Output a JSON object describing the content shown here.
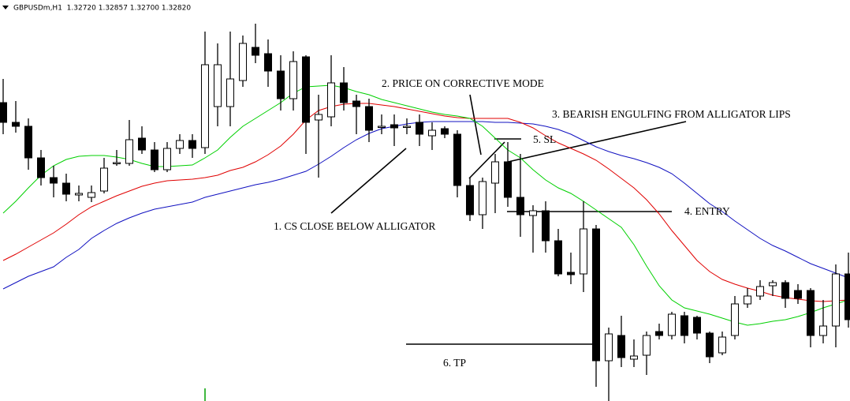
{
  "chart_data": {
    "type": "candlestick",
    "title": "GBPUSDm,H1  1.32720 1.32857 1.32700 1.32820",
    "annotations": [
      "1. CS CLOSE BELOW ALLIGATOR",
      "2. PRICE ON CORRECTIVE MODE",
      "3. BEARISH ENGULFING FROM ALLIGATOR LIPS",
      "4. ENTRY",
      "5. SL",
      "6. TP"
    ],
    "ylim": [
      1.32784,
      1.338
    ],
    "up_color": "#ffffff",
    "down_color": "#000000",
    "open": [
      1.3354,
      1.3349,
      1.3348,
      1.334,
      1.3335,
      1.33336,
      1.33306,
      1.333,
      1.33316,
      1.33386,
      1.33386,
      1.3345,
      1.3342,
      1.3337,
      1.33424,
      1.33444,
      1.33426,
      1.3353,
      1.3353,
      1.33596,
      1.3368,
      1.33664,
      1.3362,
      1.3355,
      1.33656,
      1.33496,
      1.33504,
      1.3359,
      1.33544,
      1.3353,
      1.33478,
      1.33484,
      1.33478,
      1.3349,
      1.33456,
      1.33474,
      1.3346,
      1.3333,
      1.33256,
      1.33336,
      1.3339,
      1.333,
      1.33254,
      1.33266,
      1.3319,
      1.3311,
      1.33106,
      1.3322,
      1.32886,
      1.3295,
      1.3289,
      1.329,
      1.3296,
      1.3295,
      1.33,
      1.32996,
      1.32956,
      1.32906,
      1.3295,
      1.3303,
      1.3305,
      1.33076,
      1.33084,
      1.33064,
      1.33064,
      1.3295,
      1.32974,
      1.33106
    ],
    "high": [
      1.336,
      1.33544,
      1.335,
      1.3342,
      1.3338,
      1.3336,
      1.3333,
      1.3333,
      1.334,
      1.3342,
      1.33496,
      1.3348,
      1.3344,
      1.3344,
      1.3346,
      1.3346,
      1.3372,
      1.3369,
      1.3372,
      1.3371,
      1.3374,
      1.337,
      1.3366,
      1.3367,
      1.3366,
      1.3356,
      1.3366,
      1.3363,
      1.3356,
      1.3355,
      1.3351,
      1.3351,
      1.335,
      1.3351,
      1.3349,
      1.3348,
      1.3347,
      1.3335,
      1.3335,
      1.3341,
      1.3344,
      1.3341,
      1.3328,
      1.3329,
      1.3322,
      1.3316,
      1.3329,
      1.3323,
      1.3297,
      1.33,
      1.3294,
      1.3296,
      1.3298,
      1.3301,
      1.3301,
      1.33,
      1.3296,
      1.3296,
      1.3305,
      1.3307,
      1.3309,
      1.3309,
      1.3309,
      1.3308,
      1.3307,
      1.3304,
      1.3313,
      1.3316
    ],
    "low": [
      1.3346,
      1.33464,
      1.3337,
      1.3333,
      1.333,
      1.3329,
      1.3329,
      1.33288,
      1.3331,
      1.3338,
      1.3338,
      1.3341,
      1.33364,
      1.33364,
      1.3341,
      1.334,
      1.3341,
      1.3348,
      1.3348,
      1.3358,
      1.3364,
      1.3358,
      1.3352,
      1.3352,
      1.3341,
      1.3335,
      1.3348,
      1.3352,
      1.3346,
      1.3344,
      1.3346,
      1.3343,
      1.3346,
      1.3343,
      1.3342,
      1.3345,
      1.333,
      1.3324,
      1.3322,
      1.3326,
      1.33276,
      1.332,
      1.3316,
      1.3316,
      1.331,
      1.3308,
      1.3306,
      1.3282,
      1.32784,
      1.3287,
      1.3287,
      1.3285,
      1.3294,
      1.3294,
      1.3293,
      1.3294,
      1.3288,
      1.329,
      1.3294,
      1.3302,
      1.3304,
      1.3305,
      1.3302,
      1.3303,
      1.3292,
      1.3293,
      1.3292,
      1.3297
    ],
    "close": [
      1.3349,
      1.3348,
      1.334,
      1.3335,
      1.33336,
      1.33308,
      1.3331,
      1.33312,
      1.33374,
      1.33388,
      1.33446,
      1.3342,
      1.3337,
      1.33424,
      1.33444,
      1.33424,
      1.33636,
      1.33636,
      1.336,
      1.3369,
      1.3366,
      1.3362,
      1.3355,
      1.33644,
      1.3349,
      1.3351,
      1.3359,
      1.3354,
      1.3353,
      1.3347,
      1.3348,
      1.33476,
      1.3348,
      1.3346,
      1.3347,
      1.3346,
      1.3333,
      1.33256,
      1.3334,
      1.3339,
      1.333,
      1.33256,
      1.33266,
      1.3319,
      1.33106,
      1.33104,
      1.3322,
      1.32886,
      1.32954,
      1.32894,
      1.32898,
      1.3295,
      1.3295,
      1.33004,
      1.3295,
      1.32956,
      1.32896,
      1.32946,
      1.3303,
      1.3305,
      1.33074,
      1.33084,
      1.33044,
      1.33044,
      1.3295,
      1.32974,
      1.33106,
      1.3299
    ],
    "series": [
      {
        "color": "#1010c0",
        "values": [
          1.33068,
          1.33084,
          1.331,
          1.33112,
          1.33124,
          1.33148,
          1.33168,
          1.33196,
          1.33216,
          1.33234,
          1.33248,
          1.3326,
          1.3327,
          1.33276,
          1.33282,
          1.33288,
          1.333,
          1.33308,
          1.33316,
          1.33324,
          1.33332,
          1.33338,
          1.33346,
          1.33356,
          1.33366,
          1.33384,
          1.33404,
          1.33426,
          1.33446,
          1.33462,
          1.33474,
          1.3348,
          1.33486,
          1.3349,
          1.33492,
          1.33492,
          1.33492,
          1.33492,
          1.33492,
          1.3349,
          1.3349,
          1.33488,
          1.33486,
          1.3348,
          1.33472,
          1.3346,
          1.33444,
          1.33428,
          1.33416,
          1.33406,
          1.33398,
          1.33388,
          1.33376,
          1.3336,
          1.33336,
          1.3331,
          1.33284,
          1.33264,
          1.3324,
          1.33218,
          1.33196,
          1.33178,
          1.33164,
          1.33148,
          1.33132,
          1.3312,
          1.33108,
          1.33096
        ]
      },
      {
        "color": "#e00000",
        "values": [
          1.3314,
          1.33156,
          1.33174,
          1.33192,
          1.3321,
          1.33232,
          1.33256,
          1.33276,
          1.3329,
          1.33304,
          1.33316,
          1.33328,
          1.33336,
          1.33342,
          1.33344,
          1.33346,
          1.3335,
          1.33356,
          1.33368,
          1.33376,
          1.3339,
          1.33408,
          1.3343,
          1.3346,
          1.33496,
          1.3352,
          1.3353,
          1.33536,
          1.33538,
          1.33538,
          1.33534,
          1.3353,
          1.33524,
          1.33518,
          1.33512,
          1.33506,
          1.33502,
          1.335,
          1.335,
          1.335,
          1.335,
          1.3349,
          1.33476,
          1.33456,
          1.33438,
          1.33424,
          1.3341,
          1.33394,
          1.33372,
          1.33348,
          1.33324,
          1.33294,
          1.33258,
          1.33216,
          1.33178,
          1.3314,
          1.33112,
          1.33092,
          1.3308,
          1.3307,
          1.33062,
          1.33052,
          1.33046,
          1.33042,
          1.33038,
          1.33036,
          1.33038,
          1.3304
        ]
      },
      {
        "color": "#00d000",
        "values": [
          1.3326,
          1.3329,
          1.33324,
          1.33356,
          1.3338,
          1.33396,
          1.33404,
          1.33406,
          1.33406,
          1.33402,
          1.33396,
          1.33386,
          1.33378,
          1.33378,
          1.3338,
          1.33382,
          1.334,
          1.3342,
          1.33452,
          1.3348,
          1.335,
          1.3352,
          1.3354,
          1.33564,
          1.3358,
          1.33582,
          1.33584,
          1.33578,
          1.33568,
          1.3356,
          1.33548,
          1.3354,
          1.33532,
          1.33524,
          1.33516,
          1.3351,
          1.33506,
          1.335,
          1.3348,
          1.3345,
          1.3342,
          1.334,
          1.3337,
          1.33344,
          1.33324,
          1.3331,
          1.3329,
          1.33268,
          1.33246,
          1.33224,
          1.3318,
          1.33126,
          1.33076,
          1.3304,
          1.3302,
          1.33012,
          1.33004,
          1.32994,
          1.32984,
          1.32976,
          1.3298,
          1.32986,
          1.3299,
          1.32998,
          1.33008,
          1.3302,
          1.3303,
          1.3304
        ]
      }
    ]
  }
}
